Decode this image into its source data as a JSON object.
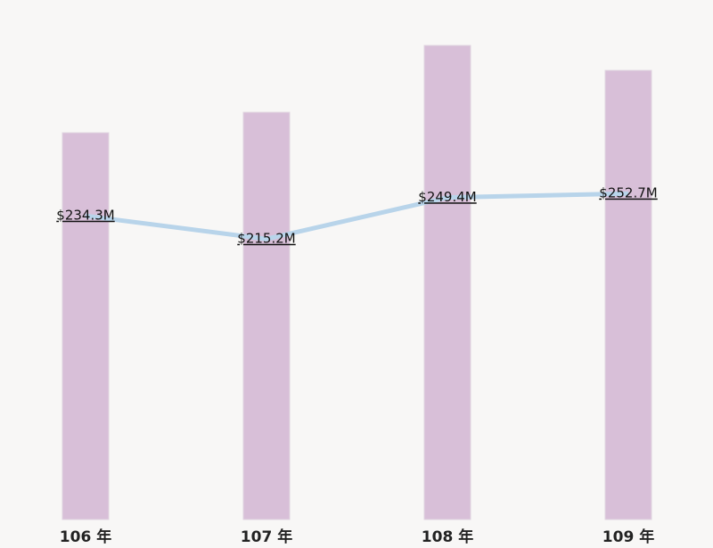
{
  "chart_data": {
    "type": "bar-line",
    "categories": [
      "106 年",
      "107 年",
      "108 年",
      "109 年"
    ],
    "series": [
      {
        "type": "bar",
        "color": "#d8bfd8",
        "values": [
          434,
          457,
          532,
          504
        ]
      },
      {
        "type": "line",
        "axis": "y2",
        "color": "#b8d4ea",
        "values": [
          234.3,
          215.2,
          249.4,
          252.7
        ],
        "value_labels": [
          "$234.3M",
          "$215.2M",
          "$249.4M",
          "$252.7M"
        ]
      }
    ],
    "ylim": [
      0,
      550
    ],
    "y2lim": [
      -16,
      388
    ]
  }
}
